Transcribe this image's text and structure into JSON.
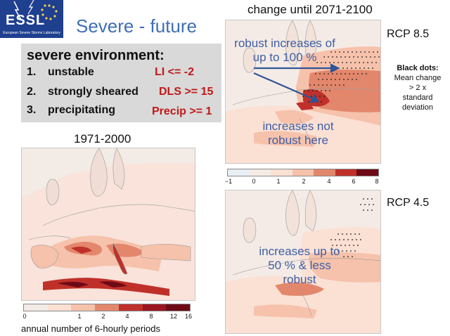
{
  "logo": {
    "name": "ESSL",
    "subtitle": "European Severe Storms Laboratory"
  },
  "title": "Severe - future",
  "criteria": {
    "heading": "severe environment:",
    "items": [
      {
        "num": "1.",
        "label": "unstable",
        "value": "LI <= -2"
      },
      {
        "num": "2.",
        "label": "strongly sheared",
        "value": "DLS >= 15"
      },
      {
        "num": "3.",
        "label": "precipitating",
        "value": "Precip >= 1"
      }
    ]
  },
  "historical": {
    "title": "1971-2000",
    "colorbar_ticks": [
      "0",
      "1",
      "2",
      "4",
      "8",
      "12",
      "16"
    ],
    "colorbar_colors": [
      "#f3ebe6",
      "#fbe0d4",
      "#f6c2ab",
      "#e3876c",
      "#c0302a",
      "#9a1622",
      "#6e0a16"
    ],
    "caption": "annual number of 6-hourly periods"
  },
  "future": {
    "title": "change until 2071-2100",
    "colorbar_ticks": [
      "−1",
      "0",
      "1",
      "2",
      "4",
      "6",
      "8"
    ],
    "colorbar_colors": [
      "#e8eff4",
      "#f5ebe6",
      "#fbe0d4",
      "#f6c2ab",
      "#e3876c",
      "#c0302a",
      "#6e0a16"
    ]
  },
  "rcp85": {
    "label": "RCP 8.5",
    "annotation_robust": "robust increases of up to 100 %",
    "annotation_not_robust": "increases not robust here"
  },
  "note": {
    "heading": "Black dots:",
    "line1": "Mean change",
    "line2": "> 2 x",
    "line3": "standard",
    "line4": "deviation"
  },
  "rcp45": {
    "label": "RCP 4.5",
    "annotation": "increases up to 50 % & less robust"
  },
  "colors": {
    "title_blue": "#3f6fb4",
    "annotation_blue": "#3e5fa5",
    "criteria_red": "#c01818",
    "logo_blue": "#1f3f8f"
  }
}
